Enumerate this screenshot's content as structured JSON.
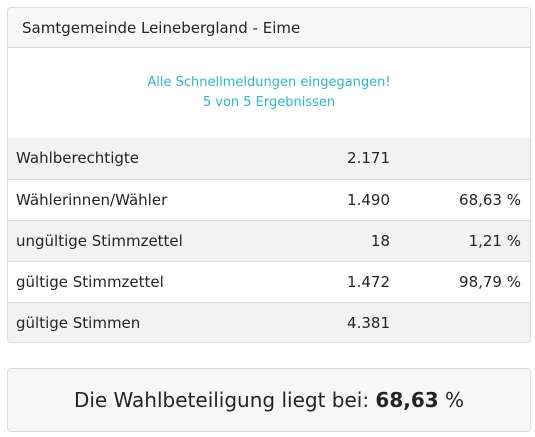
{
  "card": {
    "title": "Samtgemeinde Leinebergland - Eime",
    "notice_line1": "Alle Schnellmeldungen eingegangen!",
    "notice_line2": "5 von 5 Ergebnissen"
  },
  "rows": [
    {
      "label": "Wahlberechtigte",
      "value": "2.171",
      "percent": ""
    },
    {
      "label": "Wählerinnen/Wähler",
      "value": "1.490",
      "percent": "68,63 %"
    },
    {
      "label": "ungültige Stimmzettel",
      "value": "18",
      "percent": "1,21 %"
    },
    {
      "label": "gültige Stimmzettel",
      "value": "1.472",
      "percent": "98,79 %"
    },
    {
      "label": "gültige Stimmen",
      "value": "4.381",
      "percent": ""
    }
  ],
  "summary": {
    "prefix": "Die Wahlbeteiligung liegt bei: ",
    "value": "68,63",
    "suffix": " %"
  },
  "colors": {
    "notice": "#2bb6cf",
    "stripe": "#f2f2f2",
    "header_bg": "#f7f7f7",
    "border": "#dcdcdc"
  }
}
